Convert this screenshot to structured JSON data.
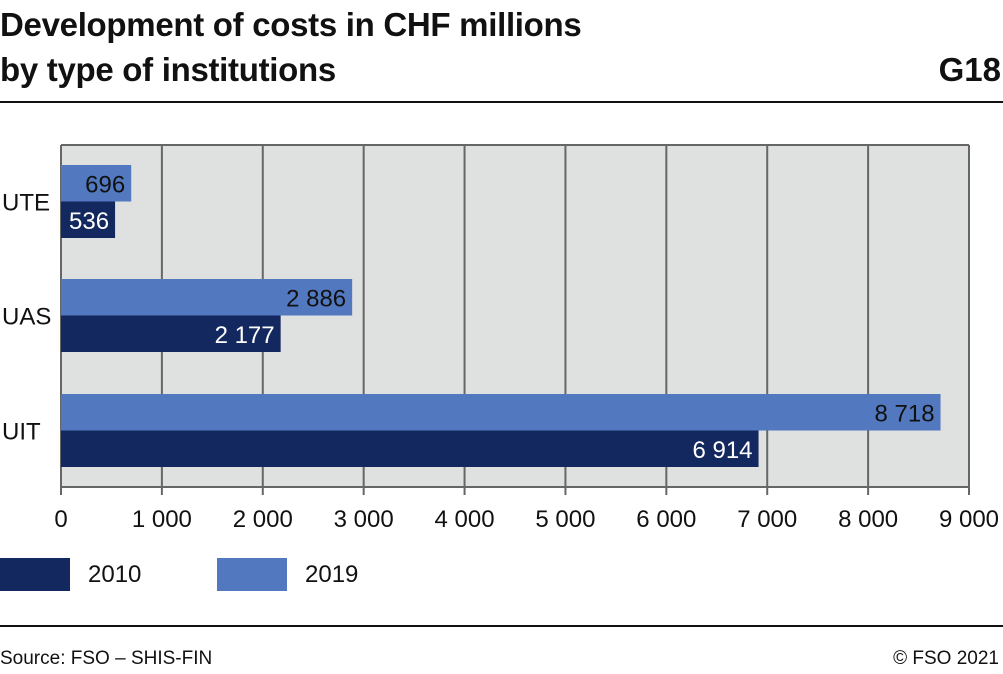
{
  "header": {
    "title_line1": "Development of costs in CHF millions",
    "title_line2": "by type of institutions",
    "code": "G18"
  },
  "chart_data": {
    "type": "bar",
    "orientation": "horizontal",
    "title": "Development of costs in CHF millions by type of institutions",
    "categories": [
      "UTE",
      "UAS",
      "UIT"
    ],
    "series": [
      {
        "name": "2010",
        "color": "#13285e",
        "values": [
          536,
          2177,
          6914
        ],
        "labels": [
          "536",
          "2 177",
          "6 914"
        ]
      },
      {
        "name": "2019",
        "color": "#5279c0",
        "values": [
          696,
          2886,
          8718
        ],
        "labels": [
          "696",
          "2 886",
          "8 718"
        ]
      }
    ],
    "xlim": [
      0,
      9000
    ],
    "xticks": [
      0,
      1000,
      2000,
      3000,
      4000,
      5000,
      6000,
      7000,
      8000,
      9000
    ],
    "xtick_labels": [
      "0",
      "1 000",
      "2 000",
      "3 000",
      "4 000",
      "5 000",
      "6 000",
      "7 000",
      "8 000",
      "9 000"
    ],
    "grid": true,
    "plot_background": "#dfe0e0",
    "legend_position": "bottom-left"
  },
  "legend": {
    "items": [
      "2010",
      "2019"
    ]
  },
  "footer": {
    "source": "Source: FSO – SHIS-FIN",
    "copyright": "© FSO 2021"
  }
}
